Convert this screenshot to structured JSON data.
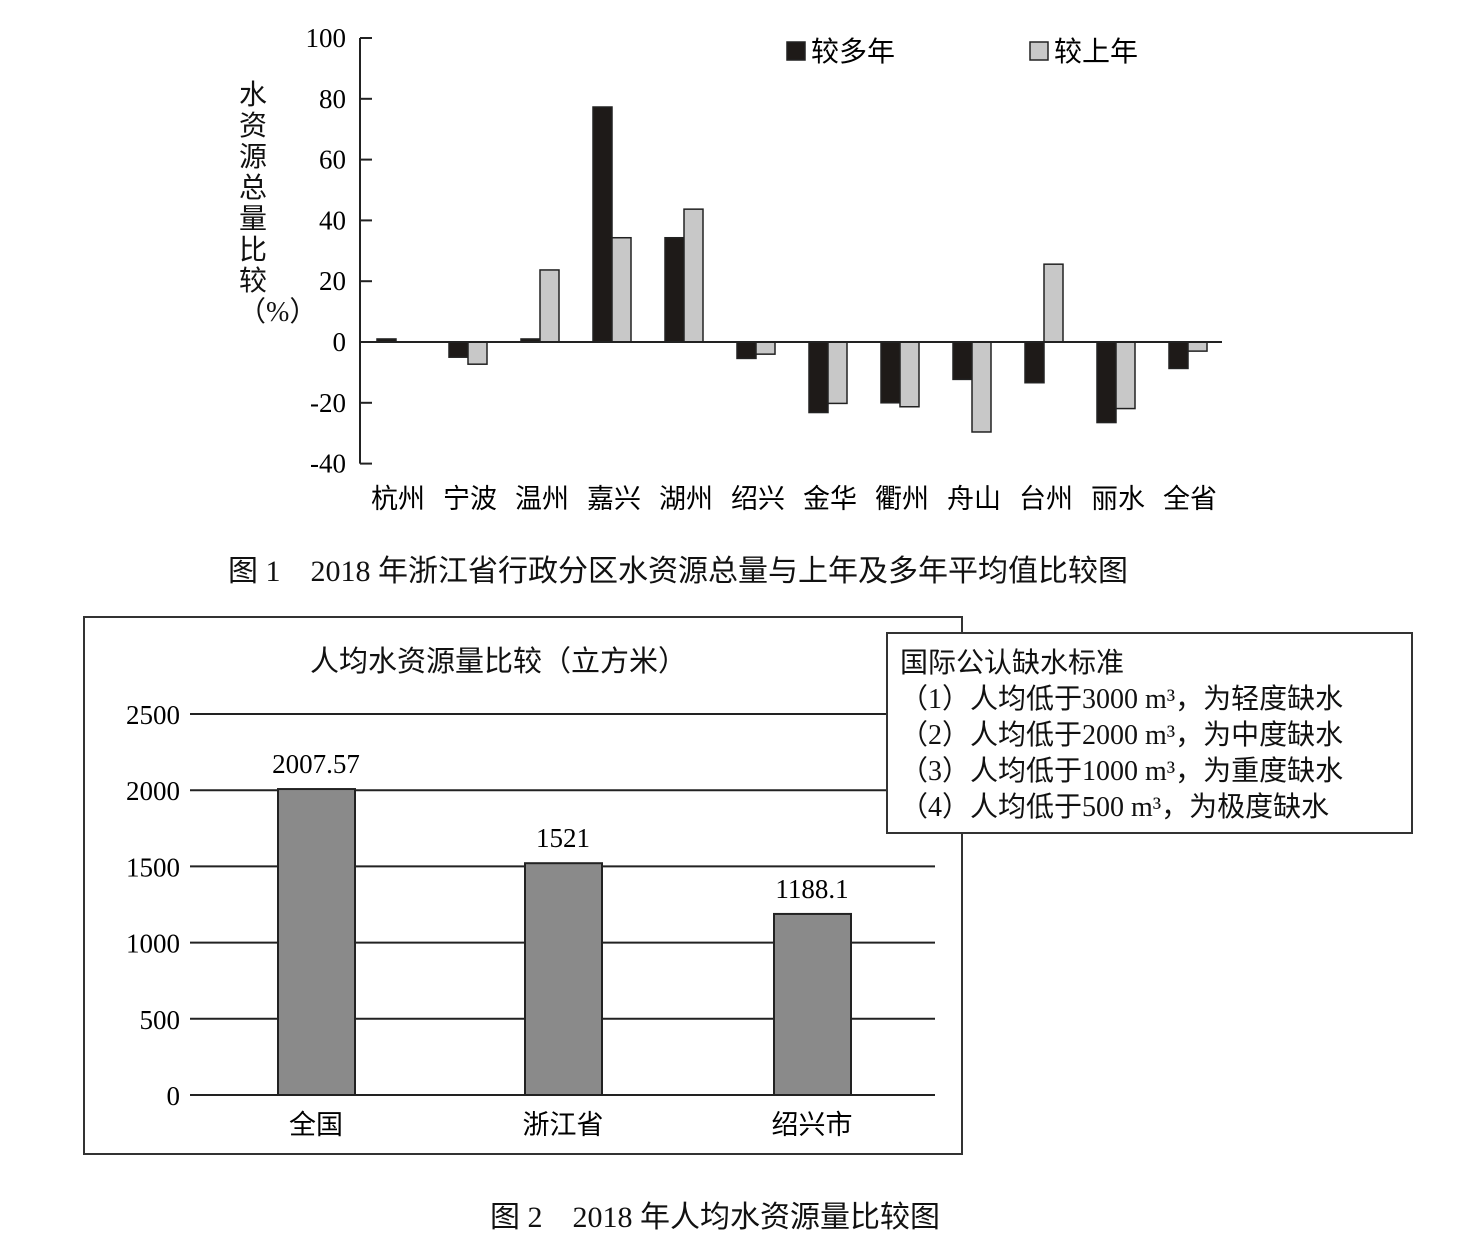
{
  "chart_data": [
    {
      "type": "bar",
      "title": "",
      "caption": "图 1　2018 年浙江省行政分区水资源总量与上年及多年平均值比较图",
      "ylabel": "水资源总量比较（%）",
      "xlabel": "",
      "ylim": [
        -40,
        100
      ],
      "yticks": [
        100,
        80,
        60,
        40,
        20,
        0,
        -20,
        -40
      ],
      "categories": [
        "杭州",
        "宁波",
        "温州",
        "嘉兴",
        "湖州",
        "绍兴",
        "金华",
        "衢州",
        "舟山",
        "台州",
        "丽水",
        "全省"
      ],
      "series": [
        {
          "name": "较多年",
          "color": "#1e1a18",
          "values": [
            1,
            -5,
            1,
            77.3,
            34.3,
            -5.4,
            -23.2,
            -20,
            -12.3,
            -13.4,
            -26.5,
            -8.7
          ]
        },
        {
          "name": "较上年",
          "color": "#c8c8c8",
          "values": [
            0,
            -7.3,
            23.7,
            34.3,
            43.7,
            -4,
            -20.2,
            -21.3,
            -29.6,
            25.6,
            -21.9,
            -3
          ]
        }
      ],
      "legend": "top-right",
      "grid": false
    },
    {
      "type": "bar",
      "title": "人均水资源量比较（立方米）",
      "caption": "图 2　2018 年人均水资源量比较图",
      "ylim": [
        0,
        2500
      ],
      "yticks": [
        0,
        500,
        1000,
        1500,
        2000,
        2500
      ],
      "categories": [
        "全国",
        "浙江省",
        "绍兴市"
      ],
      "values": [
        2007.57,
        1521,
        1188.1
      ],
      "data_labels": [
        "2007.57",
        "1521",
        "1188.1"
      ],
      "bar_color": "#8a8a8a",
      "grid": true
    }
  ],
  "note_box": {
    "title": "国际公认缺水标准",
    "lines": [
      "（1）人均低于3000 m³，为轻度缺水",
      "（2）人均低于2000 m³，为中度缺水",
      "（3）人均低于1000 m³，为重度缺水",
      "（4）人均低于500 m³，为极度缺水"
    ]
  }
}
